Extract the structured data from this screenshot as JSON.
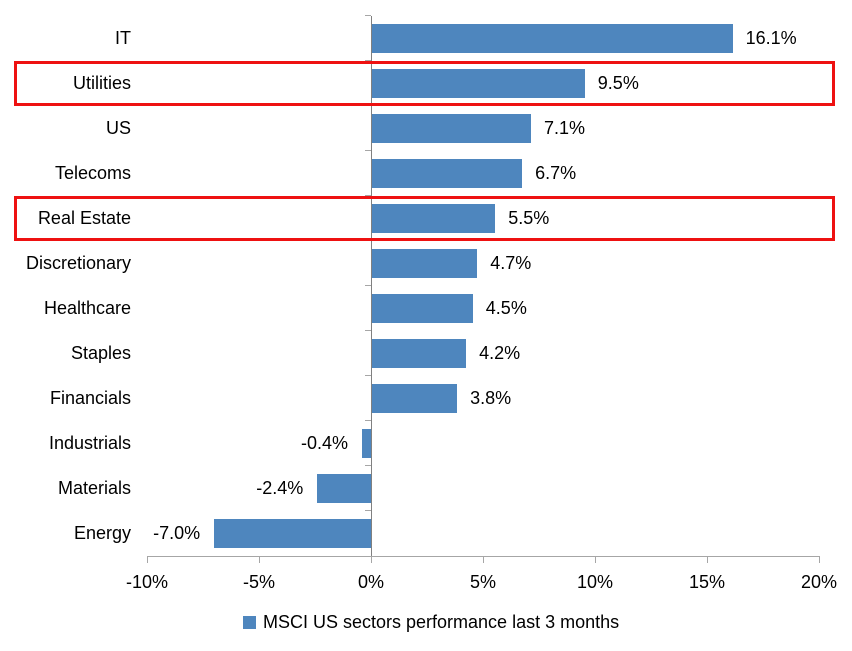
{
  "chart_data": {
    "type": "bar",
    "orientation": "horizontal",
    "categories": [
      "IT",
      "Utilities",
      "US",
      "Telecoms",
      "Real Estate",
      "Discretionary",
      "Healthcare",
      "Staples",
      "Financials",
      "Industrials",
      "Materials",
      "Energy"
    ],
    "values": [
      16.1,
      9.5,
      7.1,
      6.7,
      5.5,
      4.7,
      4.5,
      4.2,
      3.8,
      -0.4,
      -2.4,
      -7.0
    ],
    "value_labels": [
      "16.1%",
      "9.5%",
      "7.1%",
      "6.7%",
      "5.5%",
      "4.7%",
      "4.5%",
      "4.2%",
      "3.8%",
      "-0.4%",
      "-2.4%",
      "-7.0%"
    ],
    "highlight_indices": [
      1,
      4
    ],
    "highlighted_categories": [
      "Utilities",
      "Real Estate"
    ],
    "series_name": "MSCI US sectors performance last 3 months",
    "x_axis": {
      "min": -10,
      "max": 20,
      "tick_values": [
        -10,
        -5,
        0,
        5,
        10,
        15,
        20
      ],
      "tick_labels": [
        "-10%",
        "-5%",
        "0%",
        "5%",
        "10%",
        "15%",
        "20%"
      ]
    },
    "legend_position": "bottom",
    "grid": false,
    "colors": {
      "bar": "#4E86BE",
      "highlight_box": "#EE1111",
      "value_axis_line": "#A6A6A6",
      "category_axis_line": "#808080",
      "text": "#000000"
    }
  },
  "legend": {
    "label": "MSCI US sectors performance last 3 months"
  }
}
